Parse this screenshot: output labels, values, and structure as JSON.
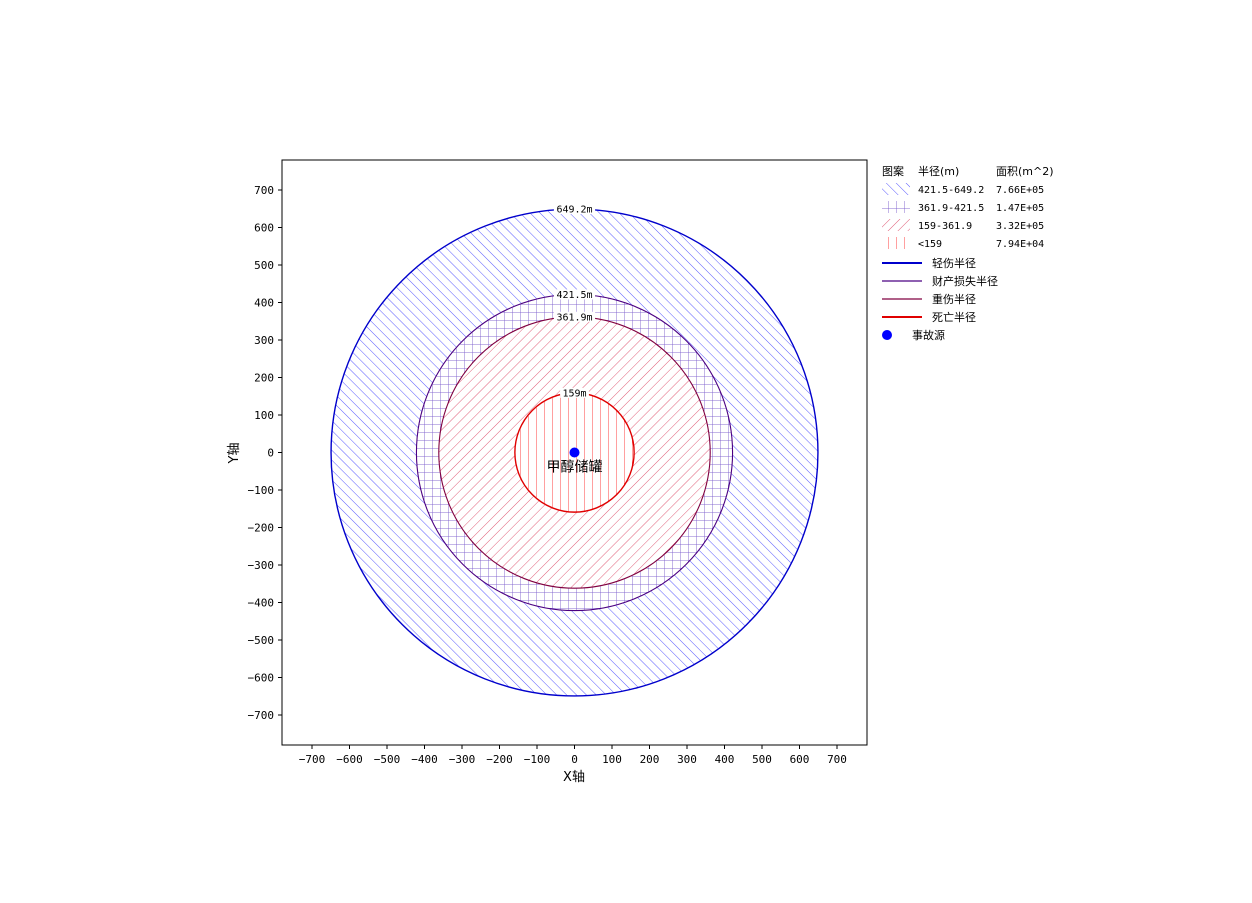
{
  "chart_data": {
    "type": "scatter",
    "xlabel": "X轴",
    "ylabel": "Y轴",
    "xlim": [
      -780,
      780
    ],
    "ylim": [
      -780,
      780
    ],
    "xticks": [
      -700,
      -600,
      -500,
      -400,
      -300,
      -200,
      -100,
      0,
      100,
      200,
      300,
      400,
      500,
      600,
      700
    ],
    "yticks": [
      -700,
      -600,
      -500,
      -400,
      -300,
      -200,
      -100,
      0,
      100,
      200,
      300,
      400,
      500,
      600,
      700
    ],
    "grid": false,
    "legend_position": "outside-right",
    "circles": [
      {
        "key": "light",
        "radius": 649.2,
        "label": "649.2m",
        "color": "#0000cc",
        "fill_color": "#5a5aff",
        "pattern": "diag-up"
      },
      {
        "key": "property",
        "radius": 421.5,
        "label": "421.5m",
        "color": "#4b0082",
        "fill_color": "#7a5ccc",
        "pattern": "grid"
      },
      {
        "key": "severe",
        "radius": 361.9,
        "label": "361.9m",
        "color": "#800040",
        "fill_color": "#e0607a",
        "pattern": "diag-down"
      },
      {
        "key": "death",
        "radius": 159,
        "label": "159m",
        "color": "#e00000",
        "fill_color": "#ff4040",
        "pattern": "vertical"
      }
    ],
    "source": {
      "x": 0,
      "y": 0,
      "label": "甲醇储罐",
      "color": "#0000ff"
    },
    "legend": {
      "header": {
        "pattern": "图案",
        "radius": "半径(m)",
        "area": "面积(m^2)"
      },
      "pattern_rows": [
        {
          "pattern": "diag-up",
          "color": "#5a5aff",
          "range": "421.5-649.2",
          "area": "7.66E+05"
        },
        {
          "pattern": "grid",
          "color": "#7a5ccc",
          "range": "361.9-421.5",
          "area": "1.47E+05"
        },
        {
          "pattern": "diag-down",
          "color": "#e0607a",
          "range": "159-361.9",
          "area": "3.32E+05"
        },
        {
          "pattern": "vertical",
          "color": "#ff4040",
          "range": "<159",
          "area": "7.94E+04"
        }
      ],
      "line_rows": [
        {
          "label": "轻伤半径",
          "color": "#0000cc"
        },
        {
          "label": "财产损失半径",
          "color": "#4b0082"
        },
        {
          "label": "重伤半径",
          "color": "#800040"
        },
        {
          "label": "死亡半径",
          "color": "#e00000"
        }
      ],
      "marker_row": {
        "label": "事故源",
        "color": "#0000ff"
      }
    }
  }
}
